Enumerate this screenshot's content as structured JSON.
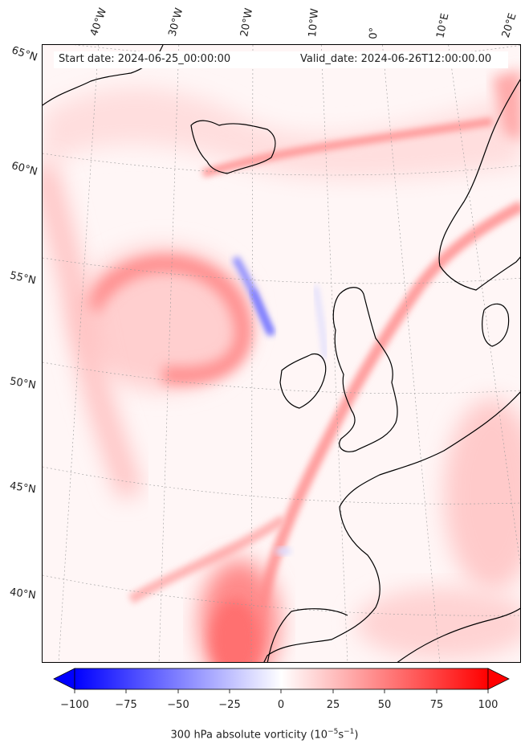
{
  "header": {
    "start_date": "Start date: 2024-06-25_00:00:00",
    "valid_date": "Valid_date: 2024-06-26T12:00:00.00"
  },
  "longitude_labels": [
    "40°W",
    "30°W",
    "20°W",
    "10°W",
    "0°",
    "10°E",
    "20°E"
  ],
  "latitude_labels": [
    "65°N",
    "60°N",
    "55°N",
    "50°N",
    "45°N",
    "40°N"
  ],
  "colorbar": {
    "ticks": [
      "−100",
      "−75",
      "−50",
      "−25",
      "0",
      "25",
      "50",
      "75",
      "100"
    ],
    "range": [
      -100,
      100
    ],
    "colors": {
      "min": "#0000ff",
      "mid": "#ffffff",
      "max": "#ff0000"
    },
    "extend": "both",
    "title_prefix": "300 hPa absolute vorticity (10",
    "title_exp1": "−5",
    "title_mid": "s",
    "title_exp2": "−1",
    "title_suffix": ")"
  }
}
